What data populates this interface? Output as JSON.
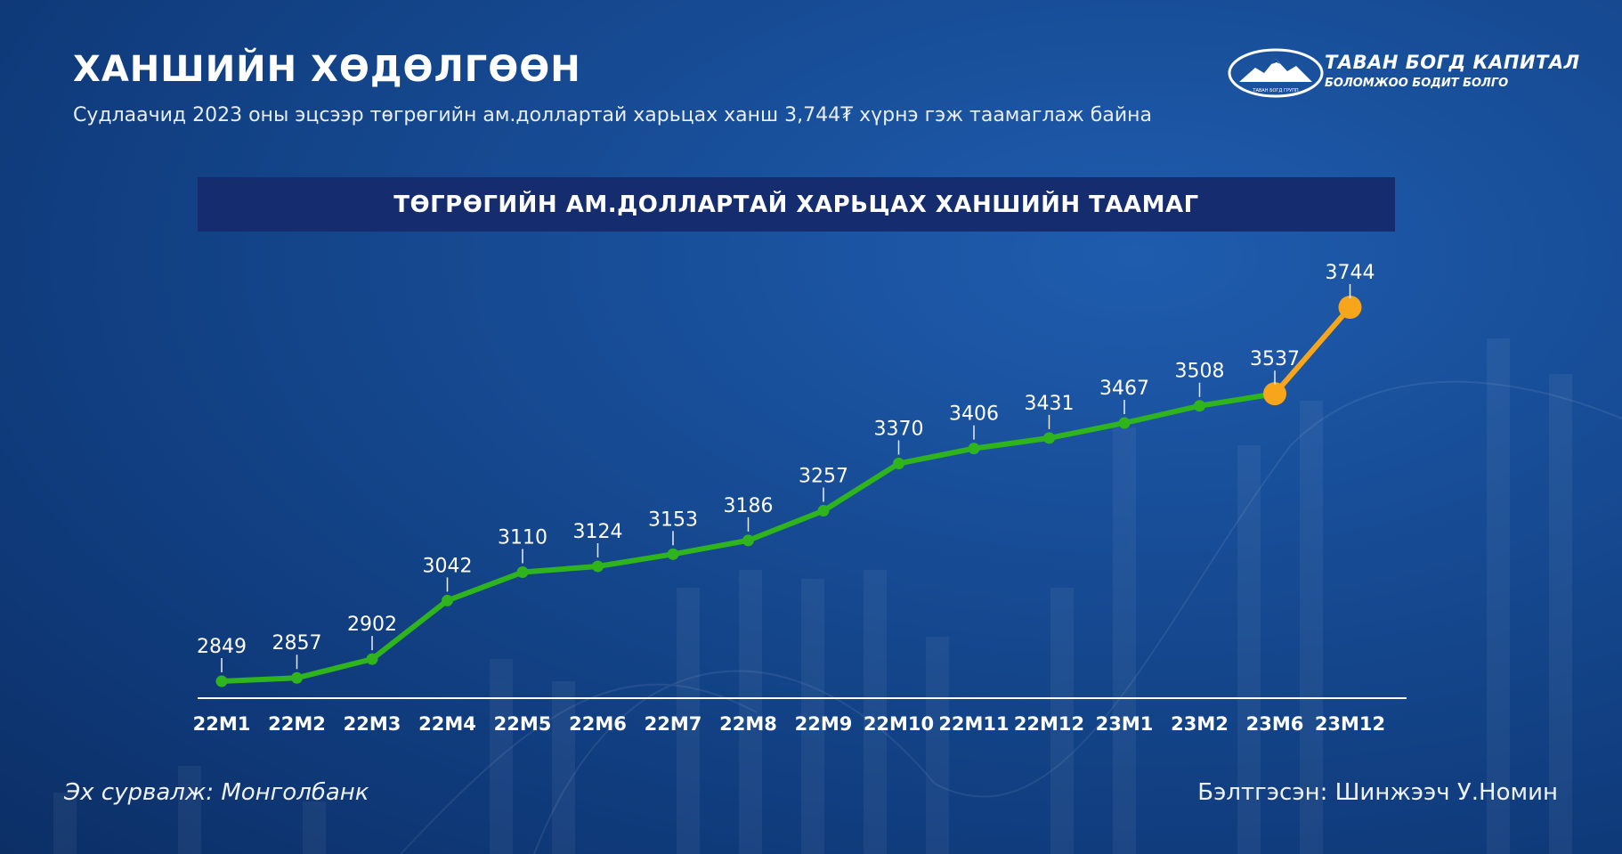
{
  "header": {
    "title": "ХАНШИЙН ХӨДӨЛГӨӨН",
    "subtitle": "Судлаачид 2023 оны эцсээр төгрөгийн ам.доллартай харьцах ханш 3,744₮ хүрнэ гэж таамаглаж байна"
  },
  "logo": {
    "name": "ТАВАН БОГД КАПИТАЛ",
    "tagline": "БОЛОМЖОО БОДИТ БОЛГО",
    "mark_text": "ТАВАН БОГД ГРУПП"
  },
  "chart_data": {
    "type": "line",
    "title": "ТӨГРӨГИЙН АМ.ДОЛЛАРТАЙ ХАРЬЦАХ ХАНШИЙН ТААМАГ",
    "categories": [
      "22M1",
      "22M2",
      "22M3",
      "22M4",
      "22M5",
      "22M6",
      "22M7",
      "22M8",
      "22M9",
      "22M10",
      "22M11",
      "22M12",
      "23M1",
      "23M2",
      "23M6",
      "23M12"
    ],
    "values": [
      2849,
      2857,
      2902,
      3042,
      3110,
      3124,
      3153,
      3186,
      3257,
      3370,
      3406,
      3431,
      3467,
      3508,
      3537,
      3744
    ],
    "forecast_start_index": 14,
    "colors": {
      "actual": "#2fb41e",
      "forecast": "#f7a51a"
    },
    "grid": false,
    "legend": "none"
  },
  "footer": {
    "source": "Эх сурвалж: Монголбанк",
    "author": "Бэлтгэсэн: Шинжээч У.Номин"
  }
}
